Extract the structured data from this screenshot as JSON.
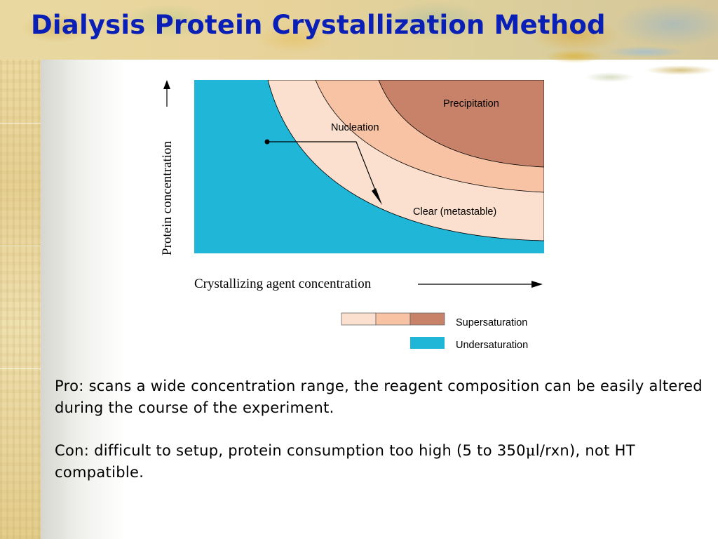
{
  "slide": {
    "title": "Dialysis Protein Crystallization Method"
  },
  "diagram": {
    "regions": {
      "precipitation": "Precipitation",
      "nucleation": "Nucleation",
      "metastable": "Clear (metastable)"
    },
    "axes": {
      "y_label": "Protein concentration",
      "x_label": "Crystallizing agent concentration"
    },
    "legend": {
      "supersaturation": "Supersaturation",
      "undersaturation": "Undersaturation"
    },
    "colors": {
      "undersaturation": "#20b6d8",
      "metastable": "#fce0cf",
      "nucleation": "#f8c2a5",
      "precipitation": "#c8826a",
      "line": "#000000"
    }
  },
  "text": {
    "pro": "Pro: scans a wide concentration range, the reagent composition can be easily altered during the course of the experiment.",
    "con_prefix": "Con: difficult to setup, protein consumption too high (5 to 350",
    "con_mu": "μ",
    "con_suffix": "l/rxn), not HT compatible."
  }
}
